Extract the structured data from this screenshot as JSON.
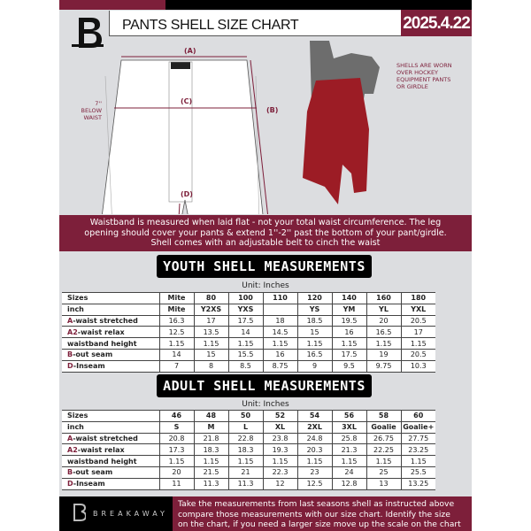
{
  "header": {
    "title": "PANTS SHELL SIZE CHART",
    "date": "2025.4.22"
  },
  "diagram": {
    "label_a": "(A)",
    "label_b": "(B)",
    "label_c": "(C)",
    "label_d": "(D)",
    "below_waist": [
      "7'' BELOW",
      "WAIST"
    ],
    "note": [
      "SHELLS ARE WORN",
      "OVER HOCKEY",
      "EQUIPMENT PANTS",
      "OR GIRDLE"
    ]
  },
  "banner": [
    "Waistband is measured when laid flat - not your total waist circumference. The leg",
    "opening should cover your pants & extend 1''-2'' past the bottom of your pant/girdle.",
    "Shell comes with an adjustable belt to cinch the waist"
  ],
  "colors": {
    "accent": "#7d1f3a",
    "black": "#000000",
    "background": "#dcdde0"
  },
  "youth": {
    "title": "YOUTH SHELL MEASUREMENTS",
    "unit": "Unit: Inches",
    "rows": [
      {
        "prefix": "",
        "label": "Sizes",
        "values": [
          "Mite",
          "80",
          "100",
          "110",
          "120",
          "140",
          "160",
          "180"
        ]
      },
      {
        "prefix": "",
        "label": "inch",
        "values": [
          "Mite",
          "Y2XS",
          "YXS",
          "",
          "YS",
          "YM",
          "YL",
          "YXL"
        ]
      },
      {
        "prefix": "A",
        "label": "-waist stretched",
        "values": [
          "16.3",
          "17",
          "17.5",
          "18",
          "18.5",
          "19.5",
          "20",
          "20.5"
        ]
      },
      {
        "prefix": "A2",
        "label": "-waist relax",
        "values": [
          "12.5",
          "13.5",
          "14",
          "14.5",
          "15",
          "16",
          "16.5",
          "17"
        ]
      },
      {
        "prefix": "",
        "label": "waistband height",
        "values": [
          "1.15",
          "1.15",
          "1.15",
          "1.15",
          "1.15",
          "1.15",
          "1.15",
          "1.15"
        ]
      },
      {
        "prefix": "B",
        "label": "-out seam",
        "values": [
          "14",
          "15",
          "15.5",
          "16",
          "16.5",
          "17.5",
          "19",
          "20.5"
        ]
      },
      {
        "prefix": "D",
        "label": "-Inseam",
        "values": [
          "7",
          "8",
          "8.5",
          "8.75",
          "9",
          "9.5",
          "9.75",
          "10.3"
        ]
      }
    ]
  },
  "adult": {
    "title": "ADULT SHELL MEASUREMENTS",
    "unit": "Unit: Inches",
    "rows": [
      {
        "prefix": "",
        "label": "Sizes",
        "values": [
          "46",
          "48",
          "50",
          "52",
          "54",
          "56",
          "58",
          "60"
        ]
      },
      {
        "prefix": "",
        "label": "inch",
        "values": [
          "S",
          "M",
          "L",
          "XL",
          "2XL",
          "3XL",
          "Goalie",
          "Goalie+"
        ]
      },
      {
        "prefix": "A",
        "label": "-waist stretched",
        "values": [
          "20.8",
          "21.8",
          "22.8",
          "23.8",
          "24.8",
          "25.8",
          "26.75",
          "27.75"
        ]
      },
      {
        "prefix": "A2",
        "label": "-waist relax",
        "values": [
          "17.3",
          "18.3",
          "18.3",
          "19.3",
          "20.3",
          "21.3",
          "22.25",
          "23.25"
        ]
      },
      {
        "prefix": "",
        "label": "waistband height",
        "values": [
          "1.15",
          "1.15",
          "1.15",
          "1.15",
          "1.15",
          "1.15",
          "1.15",
          "1.15"
        ]
      },
      {
        "prefix": "B",
        "label": "-out seam",
        "values": [
          "20",
          "21.5",
          "21",
          "22.3",
          "23",
          "24",
          "25",
          "25.5"
        ]
      },
      {
        "prefix": "D",
        "label": "-Inseam",
        "values": [
          "11",
          "11.3",
          "11.3",
          "12",
          "12.5",
          "12.8",
          "13",
          "13.25"
        ]
      }
    ]
  },
  "footer": {
    "brand": "BREAKAWAY",
    "text": [
      "Take the measurements from last seasons shell as instructed above",
      "compare those measurements  with our size chart. Identify the size",
      "on the chart, if you need a larger size move up the scale on the chart"
    ]
  }
}
